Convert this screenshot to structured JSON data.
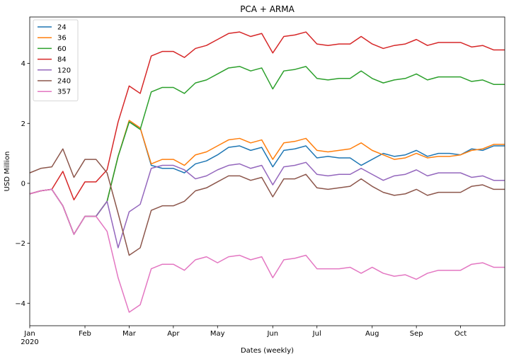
{
  "chart_data": {
    "type": "line",
    "title": "PCA + ARMA",
    "xlabel": "Dates (weekly)",
    "ylabel": "USD Million",
    "ylim": [
      -4.75,
      5.55
    ],
    "xlim": [
      0,
      43
    ],
    "grid": false,
    "legend_position": "top-left",
    "x_tick_labels": [
      {
        "x": 0,
        "label": "Jan",
        "sublabel": "2020"
      },
      {
        "x": 5,
        "label": "Feb"
      },
      {
        "x": 9,
        "label": "Mar"
      },
      {
        "x": 13,
        "label": "Apr"
      },
      {
        "x": 17,
        "label": "May"
      },
      {
        "x": 22,
        "label": "Jun"
      },
      {
        "x": 26,
        "label": "Jul"
      },
      {
        "x": 31,
        "label": "Aug"
      },
      {
        "x": 35,
        "label": "Sep"
      },
      {
        "x": 39,
        "label": "Oct"
      }
    ],
    "y_ticks": [
      -4,
      -2,
      0,
      2,
      4
    ],
    "y_tick_labels": [
      "−4",
      "−2",
      "0",
      "2",
      "4"
    ],
    "series": [
      {
        "name": "24",
        "color": "#1f77b4",
        "values": [
          -0.35,
          -0.25,
          -0.2,
          -0.75,
          -1.7,
          -1.1,
          -1.1,
          -0.6,
          0.9,
          2.05,
          1.85,
          0.6,
          0.5,
          0.5,
          0.35,
          0.65,
          0.75,
          0.95,
          1.2,
          1.25,
          1.1,
          1.2,
          0.55,
          1.1,
          1.15,
          1.25,
          0.85,
          0.9,
          0.85,
          0.85,
          0.6,
          0.8,
          1.0,
          0.9,
          0.95,
          1.1,
          0.9,
          1.0,
          1.0,
          0.95,
          1.15,
          1.1,
          1.25,
          1.25
        ]
      },
      {
        "name": "36",
        "color": "#ff7f0e",
        "values": [
          -0.35,
          -0.25,
          -0.2,
          -0.75,
          -1.7,
          -1.1,
          -1.1,
          -0.6,
          0.9,
          2.1,
          1.85,
          0.65,
          0.8,
          0.8,
          0.6,
          0.95,
          1.05,
          1.25,
          1.45,
          1.5,
          1.35,
          1.45,
          0.8,
          1.35,
          1.4,
          1.5,
          1.1,
          1.05,
          1.1,
          1.15,
          1.35,
          1.1,
          0.95,
          0.8,
          0.85,
          1.0,
          0.85,
          0.9,
          0.9,
          0.95,
          1.1,
          1.15,
          1.3,
          1.3
        ]
      },
      {
        "name": "60",
        "color": "#2ca02c",
        "values": [
          -0.35,
          -0.25,
          -0.2,
          -0.75,
          -1.7,
          -1.1,
          -1.1,
          -0.6,
          0.9,
          2.05,
          1.8,
          3.05,
          3.2,
          3.2,
          3.0,
          3.35,
          3.45,
          3.65,
          3.85,
          3.9,
          3.75,
          3.85,
          3.15,
          3.75,
          3.8,
          3.9,
          3.5,
          3.45,
          3.5,
          3.5,
          3.75,
          3.5,
          3.35,
          3.45,
          3.5,
          3.65,
          3.45,
          3.55,
          3.55,
          3.55,
          3.4,
          3.45,
          3.3,
          3.3
        ]
      },
      {
        "name": "84",
        "color": "#d62728",
        "values": [
          -0.35,
          -0.25,
          -0.2,
          0.4,
          -0.55,
          0.05,
          0.05,
          0.45,
          2.05,
          3.25,
          3.0,
          4.25,
          4.4,
          4.4,
          4.2,
          4.5,
          4.6,
          4.8,
          5.0,
          5.05,
          4.9,
          5.0,
          4.35,
          4.9,
          4.95,
          5.05,
          4.65,
          4.6,
          4.65,
          4.65,
          4.9,
          4.65,
          4.5,
          4.6,
          4.65,
          4.8,
          4.6,
          4.7,
          4.7,
          4.7,
          4.55,
          4.6,
          4.45,
          4.45
        ]
      },
      {
        "name": "120",
        "color": "#9467bd",
        "values": [
          -0.35,
          -0.25,
          -0.2,
          -0.75,
          -1.7,
          -1.1,
          -1.1,
          -0.6,
          -2.15,
          -0.95,
          -0.7,
          0.5,
          0.6,
          0.6,
          0.45,
          0.15,
          0.25,
          0.45,
          0.6,
          0.65,
          0.5,
          0.6,
          -0.05,
          0.55,
          0.6,
          0.7,
          0.3,
          0.25,
          0.3,
          0.3,
          0.5,
          0.3,
          0.1,
          0.25,
          0.3,
          0.45,
          0.25,
          0.35,
          0.35,
          0.35,
          0.2,
          0.25,
          0.1,
          0.1
        ]
      },
      {
        "name": "240",
        "color": "#8c564b",
        "values": [
          0.35,
          0.5,
          0.55,
          1.15,
          0.2,
          0.8,
          0.8,
          0.35,
          -1.0,
          -2.4,
          -2.15,
          -0.9,
          -0.75,
          -0.75,
          -0.6,
          -0.25,
          -0.15,
          0.05,
          0.25,
          0.25,
          0.1,
          0.2,
          -0.45,
          0.15,
          0.15,
          0.3,
          -0.15,
          -0.2,
          -0.15,
          -0.1,
          0.15,
          -0.1,
          -0.3,
          -0.4,
          -0.35,
          -0.2,
          -0.4,
          -0.3,
          -0.3,
          -0.3,
          -0.1,
          -0.05,
          -0.2,
          -0.2
        ]
      },
      {
        "name": "357",
        "color": "#e377c2",
        "values": [
          -0.35,
          -0.25,
          -0.2,
          -0.75,
          -1.7,
          -1.1,
          -1.1,
          -1.6,
          -3.15,
          -4.3,
          -4.05,
          -2.85,
          -2.7,
          -2.7,
          -2.9,
          -2.55,
          -2.45,
          -2.65,
          -2.45,
          -2.4,
          -2.55,
          -2.45,
          -3.15,
          -2.55,
          -2.5,
          -2.4,
          -2.85,
          -2.85,
          -2.85,
          -2.8,
          -3.0,
          -2.8,
          -3.0,
          -3.1,
          -3.05,
          -3.2,
          -3.0,
          -2.9,
          -2.9,
          -2.9,
          -2.7,
          -2.65,
          -2.8,
          -2.8
        ]
      }
    ]
  }
}
